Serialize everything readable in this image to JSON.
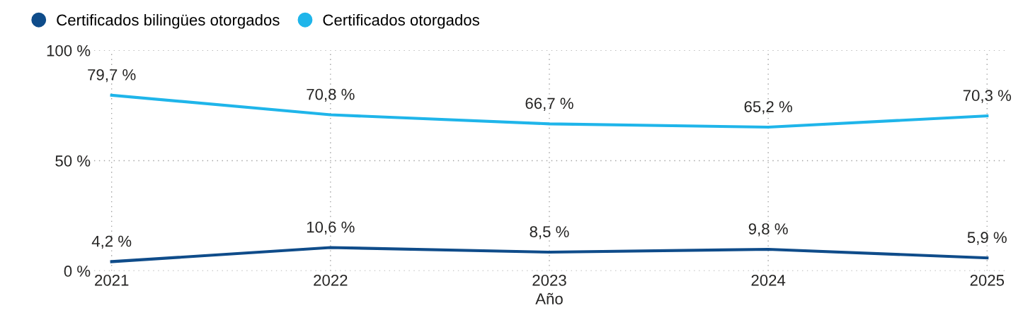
{
  "chart_data": {
    "type": "line",
    "xlabel": "Año",
    "categories": [
      "2021",
      "2022",
      "2023",
      "2024",
      "2025"
    ],
    "series": [
      {
        "name": "Certificados bilingües otorgados",
        "color": "#0f4c8a",
        "values": [
          4.2,
          10.6,
          8.5,
          9.8,
          5.9
        ],
        "value_labels": [
          "4,2 %",
          "10,6 %",
          "8,5 %",
          "9,8 %",
          "5,9 %"
        ]
      },
      {
        "name": "Certificados otorgados",
        "color": "#1fb5ea",
        "values": [
          79.7,
          70.8,
          66.7,
          65.2,
          70.3
        ],
        "value_labels": [
          "79,7 %",
          "70,8 %",
          "66,7 %",
          "65,2 %",
          "70,3 %"
        ]
      }
    ],
    "ylim": [
      0,
      100
    ],
    "yticks": [
      {
        "value": 0,
        "label": "0 %"
      },
      {
        "value": 50,
        "label": "50 %"
      },
      {
        "value": 100,
        "label": "100 %"
      }
    ],
    "grid": true,
    "legend": "top left",
    "marker": "none",
    "line_style": "solid"
  }
}
